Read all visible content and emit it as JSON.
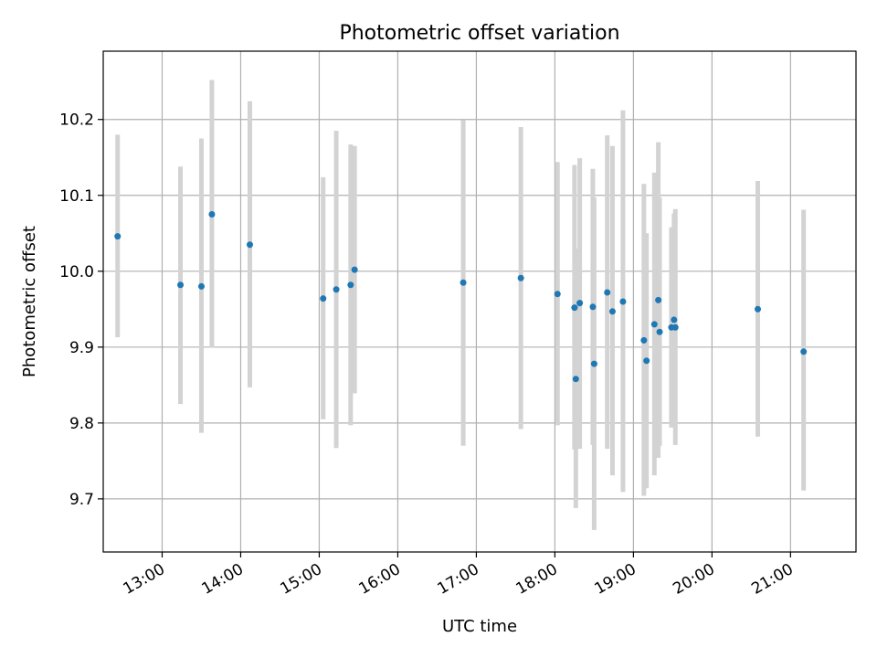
{
  "chart_data": {
    "type": "scatter",
    "title": "Photometric offset variation",
    "xlabel": "UTC time",
    "ylabel": "Photometric offset",
    "x_unit": "hours",
    "xlim": [
      "12:15",
      "21:50"
    ],
    "ylim": [
      9.63,
      10.29
    ],
    "grid": true,
    "x_ticks": [
      "13:00",
      "14:00",
      "15:00",
      "16:00",
      "17:00",
      "18:00",
      "19:00",
      "20:00",
      "21:00"
    ],
    "y_ticks": [
      "9.7",
      "9.8",
      "9.9",
      "10.0",
      "10.1",
      "10.2"
    ],
    "colors": {
      "points": "#1f77b4",
      "errorbars": "#d3d3d3",
      "grid": "#b0b0b0"
    },
    "points": [
      {
        "time": "12:26",
        "y": 10.046,
        "low": 9.913,
        "high": 10.18
      },
      {
        "time": "13:14",
        "y": 9.982,
        "low": 9.825,
        "high": 10.138
      },
      {
        "time": "13:30",
        "y": 9.98,
        "low": 9.787,
        "high": 10.175
      },
      {
        "time": "13:38",
        "y": 10.075,
        "low": 9.899,
        "high": 10.252
      },
      {
        "time": "14:07",
        "y": 10.035,
        "low": 9.847,
        "high": 10.224
      },
      {
        "time": "15:03",
        "y": 9.964,
        "low": 9.805,
        "high": 10.124
      },
      {
        "time": "15:13",
        "y": 9.976,
        "low": 9.767,
        "high": 10.185
      },
      {
        "time": "15:24",
        "y": 9.982,
        "low": 9.797,
        "high": 10.167
      },
      {
        "time": "15:27",
        "y": 10.002,
        "low": 9.839,
        "high": 10.165
      },
      {
        "time": "16:50",
        "y": 9.985,
        "low": 9.77,
        "high": 10.199
      },
      {
        "time": "17:34",
        "y": 9.991,
        "low": 9.792,
        "high": 10.19
      },
      {
        "time": "18:02",
        "y": 9.97,
        "low": 9.797,
        "high": 10.144
      },
      {
        "time": "18:15",
        "y": 9.952,
        "low": 9.765,
        "high": 10.14
      },
      {
        "time": "18:16",
        "y": 9.858,
        "low": 9.688,
        "high": 10.03
      },
      {
        "time": "18:19",
        "y": 9.958,
        "low": 9.766,
        "high": 10.149
      },
      {
        "time": "18:29",
        "y": 9.953,
        "low": 9.771,
        "high": 10.135
      },
      {
        "time": "18:30",
        "y": 9.878,
        "low": 9.659,
        "high": 10.097
      },
      {
        "time": "18:40",
        "y": 9.972,
        "low": 9.766,
        "high": 10.179
      },
      {
        "time": "18:44",
        "y": 9.947,
        "low": 9.731,
        "high": 10.165
      },
      {
        "time": "18:52",
        "y": 9.96,
        "low": 9.709,
        "high": 10.212
      },
      {
        "time": "19:08",
        "y": 9.909,
        "low": 9.704,
        "high": 10.115
      },
      {
        "time": "19:10",
        "y": 9.882,
        "low": 9.714,
        "high": 10.05
      },
      {
        "time": "19:16",
        "y": 9.93,
        "low": 9.731,
        "high": 10.13
      },
      {
        "time": "19:19",
        "y": 9.962,
        "low": 9.754,
        "high": 10.17
      },
      {
        "time": "19:20",
        "y": 9.92,
        "low": 9.77,
        "high": 10.097
      },
      {
        "time": "19:29",
        "y": 9.926,
        "low": 9.794,
        "high": 10.058
      },
      {
        "time": "19:31",
        "y": 9.936,
        "low": 9.794,
        "high": 10.076
      },
      {
        "time": "19:32",
        "y": 9.926,
        "low": 9.771,
        "high": 10.082
      },
      {
        "time": "20:35",
        "y": 9.95,
        "low": 9.782,
        "high": 10.119
      },
      {
        "time": "21:10",
        "y": 9.894,
        "low": 9.711,
        "high": 10.081
      }
    ]
  }
}
